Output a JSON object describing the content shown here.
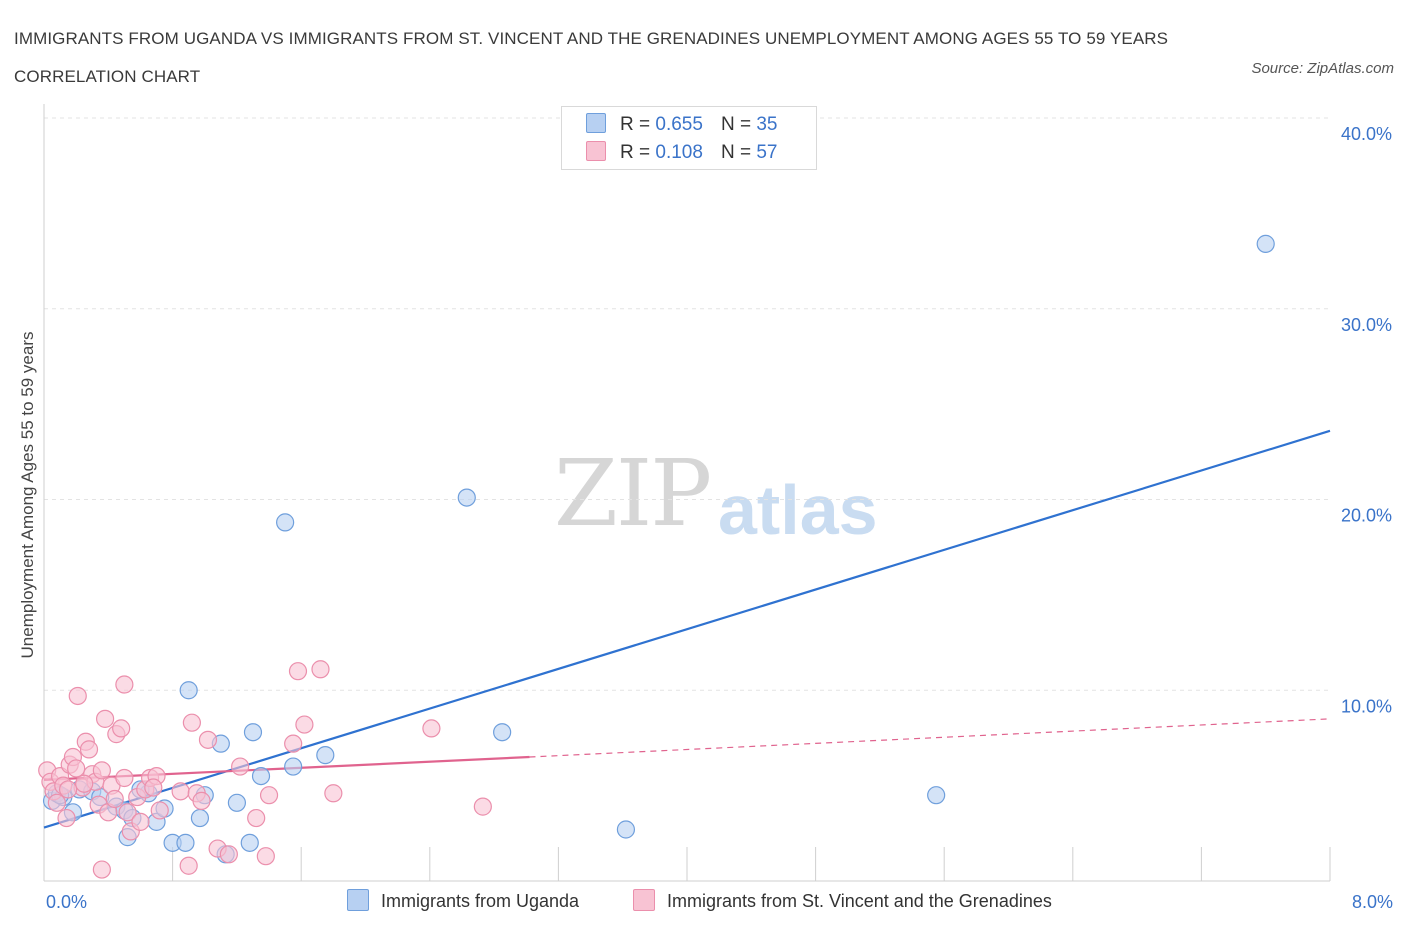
{
  "title": "IMMIGRANTS FROM UGANDA VS IMMIGRANTS FROM ST. VINCENT AND THE GRENADINES UNEMPLOYMENT AMONG AGES 55 TO 59 YEARS CORRELATION CHART",
  "source": "Source: ZipAtlas.com",
  "watermark": {
    "zip": "ZIP",
    "atlas": "atlas"
  },
  "legend": {
    "uganda": {
      "r_label": "R =",
      "r_value": "0.655",
      "n_label": "N =",
      "n_value": "35"
    },
    "stvincent": {
      "r_label": "R =",
      "r_value": "0.108",
      "n_label": "N =",
      "n_value": "57"
    }
  },
  "colors": {
    "uganda_fill": "#b7d0f2",
    "uganda_stroke": "#6f9fdc",
    "uganda_line": "#2f72d0",
    "stvincent_fill": "#f8c3d3",
    "stvincent_stroke": "#eb8fac",
    "stvincent_line": "#e0638e",
    "grid": "#e3e3e3",
    "tick_label": "#3a73c9"
  },
  "chart_data": {
    "type": "scatter",
    "xlabel": "",
    "ylabel": "Unemployment Among Ages 55 to 59 years",
    "xlim": [
      0,
      8
    ],
    "ylim": [
      0,
      40
    ],
    "x_tick_labels": [
      {
        "value": 0,
        "label": "0.0%"
      },
      {
        "value": 8,
        "label": "8.0%"
      }
    ],
    "y_tick_labels": [
      {
        "value": 10,
        "label": "10.0%"
      },
      {
        "value": 20,
        "label": "20.0%"
      },
      {
        "value": 30,
        "label": "30.0%"
      },
      {
        "value": 40,
        "label": "40.0%"
      }
    ],
    "grid": true,
    "legend_position": "top-center",
    "series": [
      {
        "name": "Immigrants from Uganda",
        "color": "#6f9fdc",
        "points": [
          [
            0.05,
            4.2
          ],
          [
            0.08,
            4.6
          ],
          [
            0.12,
            4.4
          ],
          [
            0.18,
            3.6
          ],
          [
            0.22,
            4.8
          ],
          [
            0.3,
            4.7
          ],
          [
            0.35,
            4.4
          ],
          [
            0.45,
            3.9
          ],
          [
            0.5,
            3.7
          ],
          [
            0.52,
            2.3
          ],
          [
            0.55,
            3.3
          ],
          [
            0.65,
            4.6
          ],
          [
            0.7,
            3.1
          ],
          [
            0.75,
            3.8
          ],
          [
            0.8,
            2.0
          ],
          [
            0.88,
            2.0
          ],
          [
            0.9,
            10.0
          ],
          [
            0.97,
            3.3
          ],
          [
            1.0,
            4.5
          ],
          [
            1.1,
            7.2
          ],
          [
            1.13,
            1.4
          ],
          [
            1.2,
            4.1
          ],
          [
            1.28,
            2.0
          ],
          [
            1.3,
            7.8
          ],
          [
            1.35,
            5.5
          ],
          [
            1.5,
            18.8
          ],
          [
            1.55,
            6.0
          ],
          [
            1.75,
            6.6
          ],
          [
            2.63,
            20.1
          ],
          [
            2.85,
            7.8
          ],
          [
            3.62,
            2.7
          ],
          [
            5.55,
            4.5
          ],
          [
            7.6,
            33.4
          ],
          [
            0.1,
            4.5
          ],
          [
            0.6,
            4.8
          ]
        ],
        "trend": {
          "x": [
            0,
            8
          ],
          "y": [
            2.8,
            23.6
          ],
          "style": "solid"
        }
      },
      {
        "name": "Immigrants from St. Vincent and the Grenadines",
        "color": "#eb8fac",
        "points": [
          [
            0.02,
            5.8
          ],
          [
            0.04,
            5.2
          ],
          [
            0.06,
            4.7
          ],
          [
            0.08,
            4.1
          ],
          [
            0.1,
            5.5
          ],
          [
            0.12,
            5.0
          ],
          [
            0.14,
            3.3
          ],
          [
            0.16,
            6.1
          ],
          [
            0.18,
            6.5
          ],
          [
            0.2,
            5.9
          ],
          [
            0.21,
            9.7
          ],
          [
            0.24,
            4.9
          ],
          [
            0.26,
            7.3
          ],
          [
            0.28,
            6.9
          ],
          [
            0.3,
            5.6
          ],
          [
            0.32,
            5.2
          ],
          [
            0.34,
            4.0
          ],
          [
            0.36,
            5.8
          ],
          [
            0.36,
            0.6
          ],
          [
            0.38,
            8.5
          ],
          [
            0.4,
            3.6
          ],
          [
            0.42,
            5.0
          ],
          [
            0.45,
            7.7
          ],
          [
            0.48,
            8.0
          ],
          [
            0.5,
            5.4
          ],
          [
            0.52,
            3.6
          ],
          [
            0.54,
            2.6
          ],
          [
            0.5,
            10.3
          ],
          [
            0.58,
            4.4
          ],
          [
            0.6,
            3.1
          ],
          [
            0.63,
            4.8
          ],
          [
            0.66,
            5.4
          ],
          [
            0.7,
            5.5
          ],
          [
            0.72,
            3.7
          ],
          [
            0.85,
            4.7
          ],
          [
            0.9,
            0.8
          ],
          [
            0.92,
            8.3
          ],
          [
            0.95,
            4.6
          ],
          [
            0.98,
            4.2
          ],
          [
            1.02,
            7.4
          ],
          [
            1.08,
            1.7
          ],
          [
            1.15,
            1.4
          ],
          [
            1.22,
            6.0
          ],
          [
            1.32,
            3.3
          ],
          [
            1.38,
            1.3
          ],
          [
            1.4,
            4.5
          ],
          [
            1.55,
            7.2
          ],
          [
            1.58,
            11.0
          ],
          [
            1.62,
            8.2
          ],
          [
            1.72,
            11.1
          ],
          [
            1.8,
            4.6
          ],
          [
            2.41,
            8.0
          ],
          [
            2.73,
            3.9
          ],
          [
            0.15,
            4.8
          ],
          [
            0.25,
            5.1
          ],
          [
            0.44,
            4.3
          ],
          [
            0.68,
            4.9
          ]
        ],
        "trend": {
          "x": [
            0,
            3.02
          ],
          "y": [
            5.3,
            6.5
          ],
          "style": "solid"
        },
        "trend_extension": {
          "x": [
            3.02,
            8
          ],
          "y": [
            6.5,
            8.5
          ],
          "style": "dashed"
        }
      }
    ]
  },
  "bottom_legend": {
    "uganda_label": "Immigrants from Uganda",
    "stvincent_label": "Immigrants from St. Vincent and the Grenadines"
  }
}
